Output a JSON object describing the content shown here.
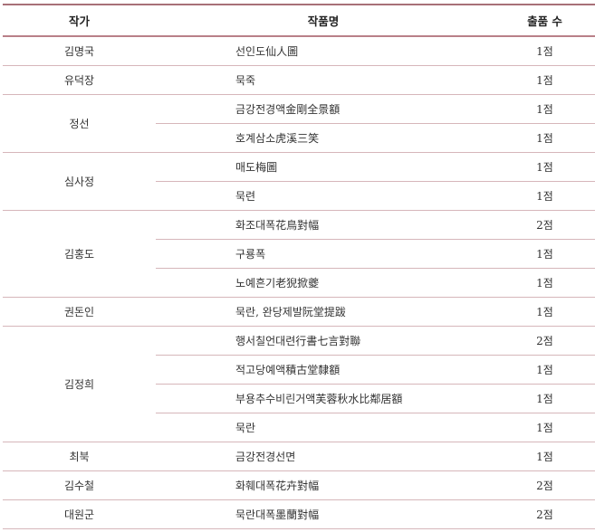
{
  "headers": {
    "artist": "작가",
    "title": "작품명",
    "count": "출품 수"
  },
  "groups": [
    {
      "artist": "김명국",
      "works": [
        {
          "title": "선인도仙人圖",
          "count": "1점"
        }
      ]
    },
    {
      "artist": "유덕장",
      "works": [
        {
          "title": "묵죽",
          "count": "1점"
        }
      ]
    },
    {
      "artist": "정선",
      "works": [
        {
          "title": "금강전경액金剛全景額",
          "count": "1점"
        },
        {
          "title": "호계삼소虎溪三笑",
          "count": "1점"
        }
      ]
    },
    {
      "artist": "심사정",
      "works": [
        {
          "title": "매도梅圖",
          "count": "1점"
        },
        {
          "title": "묵련",
          "count": "1점"
        }
      ]
    },
    {
      "artist": "김홍도",
      "works": [
        {
          "title": "화조대폭花鳥對幅",
          "count": "2점"
        },
        {
          "title": "구룡폭",
          "count": "1점"
        },
        {
          "title": "노예흔기老猊掀夔",
          "count": "1점"
        }
      ]
    },
    {
      "artist": "권돈인",
      "works": [
        {
          "title": "묵란, 완당제발阮堂提跋",
          "count": "1점"
        }
      ]
    },
    {
      "artist": "김정희",
      "works": [
        {
          "title": "행서칠언대련行書七言對聯",
          "count": "2점"
        },
        {
          "title": "적고당예액積古堂隸額",
          "count": "1점"
        },
        {
          "title": "부용추수비린거액芙蓉秋水比鄰居額",
          "count": "1점"
        },
        {
          "title": "묵란",
          "count": "1점"
        }
      ]
    },
    {
      "artist": "최북",
      "works": [
        {
          "title": "금강전경선면",
          "count": "1점"
        }
      ]
    },
    {
      "artist": "김수철",
      "works": [
        {
          "title": "화훼대폭花卉對幅",
          "count": "2점"
        }
      ]
    },
    {
      "artist": "대원군",
      "works": [
        {
          "title": "묵란대폭墨蘭對幅",
          "count": "2점"
        }
      ]
    }
  ]
}
